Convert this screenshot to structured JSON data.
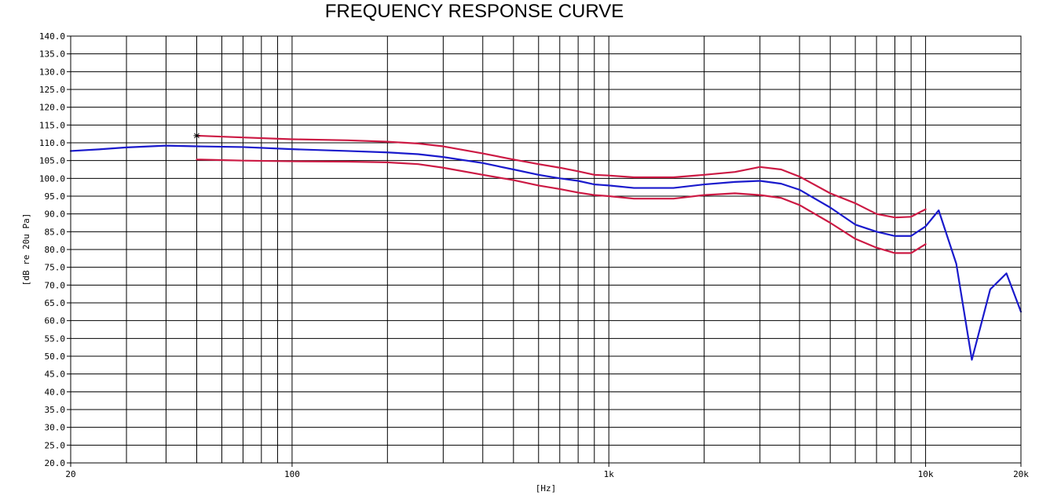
{
  "chart_data": {
    "type": "line",
    "title": "FREQUENCY RESPONSE CURVE",
    "xlabel": "[Hz]",
    "ylabel": "[dB re 20u Pa]",
    "x_scale": "log",
    "xlim": [
      20,
      20000
    ],
    "ylim": [
      20,
      140
    ],
    "y_step": 5,
    "grid": true,
    "x_tick_labels": [
      {
        "value": 20,
        "label": "20"
      },
      {
        "value": 100,
        "label": "100"
      },
      {
        "value": 1000,
        "label": "1k"
      },
      {
        "value": 10000,
        "label": "10k"
      },
      {
        "value": 20000,
        "label": "20k"
      }
    ],
    "x_gridlines": [
      30,
      40,
      50,
      60,
      70,
      80,
      90,
      100,
      200,
      300,
      400,
      500,
      600,
      700,
      800,
      900,
      1000,
      2000,
      3000,
      4000,
      5000,
      6000,
      7000,
      8000,
      9000,
      10000
    ],
    "y_tick_labels": [
      "20.0",
      "25.0",
      "30.0",
      "35.0",
      "40.0",
      "45.0",
      "50.0",
      "55.0",
      "60.0",
      "65.0",
      "70.0",
      "75.0",
      "80.0",
      "85.0",
      "90.0",
      "95.0",
      "100.0",
      "105.0",
      "110.0",
      "115.0",
      "120.0",
      "125.0",
      "130.0",
      "135.0",
      "140.0"
    ],
    "series": [
      {
        "color": "#1a1acc",
        "x": [
          20,
          25,
          30,
          40,
          50,
          70,
          100,
          150,
          200,
          250,
          300,
          400,
          500,
          600,
          700,
          800,
          900,
          1000,
          1200,
          1600,
          2000,
          2500,
          3000,
          3500,
          4000,
          5000,
          6000,
          7000,
          8000,
          9000,
          10000,
          11000,
          12500,
          14000,
          16000,
          18000,
          20000
        ],
        "y": [
          107.7,
          108.2,
          108.7,
          109.2,
          109.0,
          108.8,
          108.2,
          107.7,
          107.3,
          106.8,
          106.0,
          104.3,
          102.5,
          101.0,
          100.0,
          99.3,
          98.3,
          98.0,
          97.3,
          97.3,
          98.3,
          99.0,
          99.3,
          98.5,
          96.8,
          91.8,
          87.0,
          85.0,
          83.8,
          83.8,
          86.5,
          91.0,
          76.0,
          49.0,
          68.8,
          73.3,
          62.5
        ]
      },
      {
        "color": "#cc1a44",
        "x": [
          50,
          70,
          100,
          150,
          200,
          250,
          300,
          400,
          500,
          600,
          700,
          800,
          900,
          1000,
          1200,
          1600,
          2000,
          2500,
          3000,
          3500,
          4000,
          5000,
          6000,
          7000,
          8000,
          9000,
          10000
        ],
        "y": [
          112.0,
          111.5,
          111.0,
          110.7,
          110.3,
          109.8,
          109.0,
          107.0,
          105.3,
          104.0,
          103.0,
          102.0,
          101.0,
          100.8,
          100.3,
          100.3,
          101.0,
          101.8,
          103.2,
          102.5,
          100.5,
          95.8,
          93.0,
          90.0,
          89.0,
          89.2,
          91.3
        ]
      },
      {
        "color": "#cc1a44",
        "x": [
          50,
          70,
          100,
          150,
          200,
          250,
          300,
          400,
          500,
          600,
          700,
          800,
          900,
          1000,
          1200,
          1600,
          2000,
          2500,
          3000,
          3500,
          4000,
          5000,
          6000,
          7000,
          8000,
          9000,
          10000
        ],
        "y": [
          105.3,
          105.0,
          104.8,
          104.7,
          104.5,
          104.0,
          103.0,
          101.0,
          99.5,
          98.0,
          97.0,
          96.0,
          95.3,
          95.0,
          94.3,
          94.3,
          95.3,
          95.8,
          95.3,
          94.5,
          92.5,
          87.5,
          83.0,
          80.5,
          79.0,
          79.0,
          81.5
        ]
      }
    ],
    "annotations": [
      {
        "type": "cursor-mark",
        "x": 50,
        "y": 112.0,
        "color": "#000000"
      }
    ]
  }
}
